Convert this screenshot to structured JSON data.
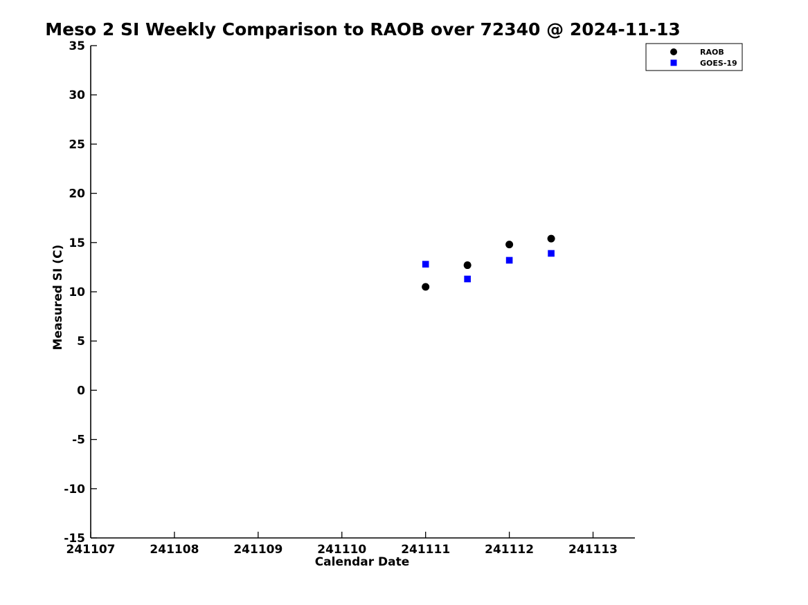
{
  "background_color": "#ffffff",
  "axis_color": "#000000",
  "chart_data": {
    "type": "scatter",
    "title": "Meso 2 SI Weekly Comparison to RAOB over 72340 @ 2024-11-13",
    "xlabel": "Calendar Date",
    "ylabel": "Measured SI (C)",
    "xlim": [
      241107,
      241113.5
    ],
    "ylim": [
      -15,
      35
    ],
    "xticks": [
      241107,
      241108,
      241109,
      241110,
      241111,
      241112,
      241113
    ],
    "yticks": [
      -15,
      -10,
      -5,
      0,
      5,
      10,
      15,
      20,
      25,
      30,
      35
    ],
    "grid": false,
    "legend_position": "top-right",
    "x": [
      241111,
      241111.5,
      241112,
      241112.5
    ],
    "series": [
      {
        "name": "RAOB",
        "marker": "circle",
        "color": "#000000",
        "values": [
          10.5,
          12.7,
          14.8,
          15.4
        ]
      },
      {
        "name": "GOES-19",
        "marker": "square",
        "color": "#0000ff",
        "values": [
          12.8,
          11.3,
          13.2,
          13.9
        ]
      }
    ]
  }
}
